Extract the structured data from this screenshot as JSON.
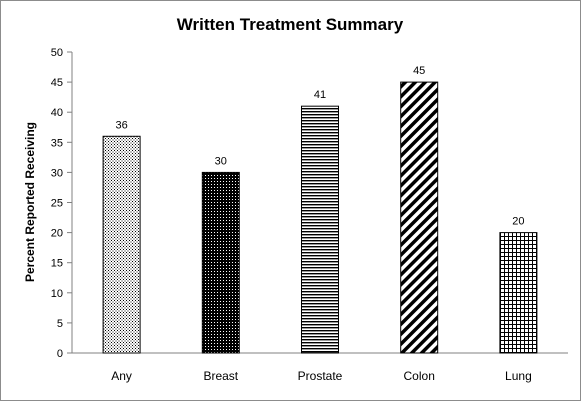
{
  "chart_data": {
    "type": "bar",
    "title": "Written Treatment Summary",
    "xlabel": "",
    "ylabel": "Percent Reported Receiving",
    "ylim": [
      0,
      50
    ],
    "yticks": [
      0,
      5,
      10,
      15,
      20,
      25,
      30,
      35,
      40,
      45,
      50
    ],
    "categories": [
      "Any",
      "Breast",
      "Prostate",
      "Colon",
      "Lung"
    ],
    "values": [
      36,
      30,
      41,
      45,
      20
    ],
    "value_labels": [
      "36",
      "30",
      "41",
      "45",
      "20"
    ],
    "patterns": [
      "dotted-light",
      "dotted-dense",
      "horizontal-lines",
      "diagonal-stripes",
      "grid"
    ],
    "grid": false,
    "legend": "none",
    "bar_color": "#000000"
  }
}
